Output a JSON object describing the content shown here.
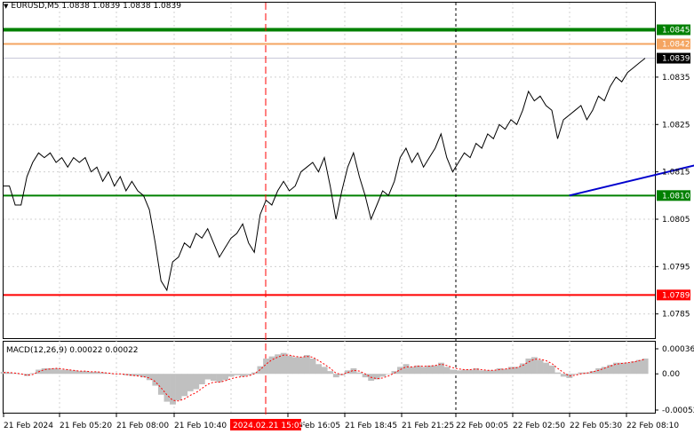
{
  "header": {
    "symbol": "EURUSD,M5",
    "ohlc": "1.0838 1.0839 1.0838 1.0839"
  },
  "macd": {
    "label": "MACD(12,26,9)",
    "values": "0.00022 0.00022",
    "axis_ticks": [
      "0.00036",
      "0.00",
      "-0.00052"
    ],
    "histogram_color": "#c0c0c0",
    "signal_color": "#ff0000"
  },
  "price_axis": {
    "ticks": [
      "1.0835",
      "1.0825",
      "1.0815",
      "1.0805",
      "1.0795",
      "1.0785"
    ]
  },
  "levels": [
    {
      "price": "1.0845",
      "color": "#008000"
    },
    {
      "price": "1.0842",
      "color": "#f4a460"
    },
    {
      "price": "1.0839",
      "color": "#000000"
    },
    {
      "price": "1.0810",
      "color": "#008000"
    },
    {
      "price": "1.0789",
      "color": "#ff0000"
    }
  ],
  "time_axis": {
    "ticks": [
      "21 Feb 2024",
      "21 Feb 05:20",
      "21 Feb 08:00",
      "21 Feb 10:40",
      "21 Feb 16:05",
      "21 Feb 18:45",
      "21 Feb 21:25",
      "22 Feb 00:05",
      "22 Feb 02:50",
      "22 Feb 05:30",
      "22 Feb 08:10"
    ],
    "highlight": "2024.02.21 15:05"
  },
  "colors": {
    "background": "#ffffff",
    "price_line": "#000000",
    "trend_line": "#0000cd",
    "vertical_marker": "#ff0000"
  },
  "chart_data": {
    "type": "line",
    "ylim": [
      1.078,
      1.0849
    ],
    "series": [
      {
        "values": [
          1.0812,
          1.0812,
          1.0808,
          1.0808,
          1.0814,
          1.0817,
          1.0819,
          1.0818,
          1.0819,
          1.0817,
          1.0818,
          1.0816,
          1.0818,
          1.0817,
          1.0818,
          1.0815,
          1.0816,
          1.0813,
          1.0815,
          1.0812,
          1.0814,
          1.0811,
          1.0813,
          1.0811,
          1.081,
          1.0807,
          1.08,
          1.0792,
          1.079,
          1.0796,
          1.0797,
          1.08,
          1.0799,
          1.0802,
          1.0801,
          1.0803,
          1.08,
          1.0797,
          1.0799,
          1.0801,
          1.0802,
          1.0804,
          1.08,
          1.0798,
          1.0806,
          1.0809,
          1.0808,
          1.0811,
          1.0813,
          1.0811,
          1.0812,
          1.0815,
          1.0816,
          1.0817,
          1.0815,
          1.0818,
          1.0812,
          1.0805,
          1.0811,
          1.0816,
          1.0819,
          1.0814,
          1.081,
          1.0805,
          1.0808,
          1.0811,
          1.081,
          1.0813,
          1.0818,
          1.082,
          1.0817,
          1.0819,
          1.0816,
          1.0818,
          1.082,
          1.0823,
          1.0818,
          1.0815,
          1.0817,
          1.0819,
          1.0818,
          1.0821,
          1.082,
          1.0823,
          1.0822,
          1.0825,
          1.0824,
          1.0826,
          1.0825,
          1.0828,
          1.0832,
          1.083,
          1.0831,
          1.0829,
          1.0828,
          1.0822,
          1.0826,
          1.0827,
          1.0828,
          1.0829,
          1.0826,
          1.0828,
          1.0831,
          1.083,
          1.0833,
          1.0835,
          1.0834,
          1.0836,
          1.0837,
          1.0838,
          1.0839
        ]
      }
    ],
    "trend_line": {
      "from": [
        97,
        1.081
      ],
      "to": [
        124,
        1.0818
      ]
    },
    "macd": {
      "histogram": [
        3e-05,
        2e-05,
        1e-05,
        0.0,
        -3e-05,
        1e-05,
        6e-05,
        8e-05,
        8e-05,
        8e-05,
        6e-05,
        6e-05,
        5e-05,
        4e-05,
        4e-05,
        3e-05,
        3e-05,
        2e-05,
        1e-05,
        0.0,
        0.0,
        -2e-05,
        -3e-05,
        -3e-05,
        -5e-05,
        -9e-05,
        -0.00017,
        -0.0003,
        -0.0004,
        -0.00044,
        -0.00038,
        -0.00032,
        -0.00025,
        -0.00022,
        -0.00015,
        -8e-05,
        -0.0001,
        -0.00012,
        -9e-05,
        -4e-05,
        -2e-05,
        -4e-05,
        -2e-05,
        2e-05,
        0.00011,
        0.00022,
        0.00025,
        0.00028,
        0.0003,
        0.00026,
        0.00024,
        0.00024,
        0.00027,
        0.00022,
        0.00014,
        0.0001,
        4e-05,
        -5e-05,
        -2e-05,
        5e-05,
        8e-05,
        2e-05,
        -5e-05,
        -0.0001,
        -8e-05,
        -4e-05,
        0.0,
        4e-05,
        0.0001,
        0.00014,
        0.0001,
        0.00012,
        0.0001,
        0.00012,
        0.00012,
        0.00016,
        0.0001,
        6e-05,
        5e-05,
        6e-05,
        6e-05,
        8e-05,
        5e-05,
        5e-05,
        5e-05,
        8e-05,
        7e-05,
        0.0001,
        0.0001,
        0.00015,
        0.00022,
        0.00024,
        0.0002,
        0.00016,
        0.00012,
        2e-05,
        -4e-05,
        -6e-05,
        -1e-05,
        2e-05,
        2e-05,
        4e-05,
        8e-05,
        0.0001,
        0.00013,
        0.00016,
        0.00016,
        0.00016,
        0.00018,
        0.0002,
        0.00022
      ],
      "signal": [
        2e-05,
        2e-05,
        1e-05,
        0.0,
        -2e-05,
        -1e-05,
        3e-05,
        6e-05,
        7e-05,
        8e-05,
        7e-05,
        6e-05,
        5e-05,
        4e-05,
        4e-05,
        3e-05,
        3e-05,
        2e-05,
        1e-05,
        0.0,
        0.0,
        -1e-05,
        -2e-05,
        -3e-05,
        -4e-05,
        -6e-05,
        -0.00011,
        -0.0002,
        -0.0003,
        -0.00038,
        -0.00039,
        -0.00036,
        -0.00031,
        -0.00027,
        -0.00021,
        -0.00015,
        -0.00012,
        -0.00012,
        -0.0001,
        -7e-05,
        -5e-05,
        -4e-05,
        -3e-05,
        0.0,
        6e-05,
        0.00014,
        0.0002,
        0.00024,
        0.00027,
        0.00027,
        0.00025,
        0.00024,
        0.00025,
        0.00024,
        0.00019,
        0.00014,
        8e-05,
        1e-05,
        -1e-05,
        2e-05,
        5e-05,
        4e-05,
        0.0,
        -5e-05,
        -7e-05,
        -6e-05,
        -3e-05,
        1e-05,
        6e-05,
        0.0001,
        0.0001,
        0.00011,
        0.00011,
        0.00011,
        0.00012,
        0.00014,
        0.00012,
        9e-05,
        7e-05,
        6e-05,
        6e-05,
        7e-05,
        6e-05,
        5e-05,
        5e-05,
        6e-05,
        7e-05,
        8e-05,
        9e-05,
        0.00012,
        0.00017,
        0.00021,
        0.00021,
        0.00019,
        0.00015,
        8e-05,
        2e-05,
        -3e-05,
        -2e-05,
        0.0,
        1e-05,
        3e-05,
        5e-05,
        8e-05,
        0.00011,
        0.00014,
        0.00015,
        0.00016,
        0.00017,
        0.00019,
        0.00021
      ],
      "ylim": [
        -0.00052,
        0.00036
      ]
    }
  }
}
